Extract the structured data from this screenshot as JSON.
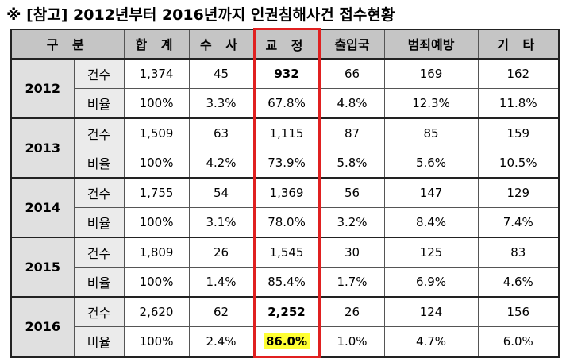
{
  "title": "※ [참고] 2012년부터 2016년까지 인권침해사건 접수현황",
  "headers": [
    "구 분",
    "합 계",
    "수 사",
    "교 정",
    "출입국",
    "범죄예방",
    "기 타"
  ],
  "rows": [
    {
      "year": "2012",
      "count": {
        "label": "건수",
        "values": [
          "1,374",
          "45",
          "932",
          "66",
          "169",
          "162"
        ]
      },
      "rate": {
        "label": "비율",
        "values": [
          "100%",
          "3.3%",
          "67.8%",
          "4.8%",
          "12.3%",
          "11.8%"
        ]
      }
    },
    {
      "year": "2013",
      "count": {
        "label": "건수",
        "values": [
          "1,509",
          "63",
          "1,115",
          "87",
          "85",
          "159"
        ]
      },
      "rate": {
        "label": "비율",
        "values": [
          "100%",
          "4.2%",
          "73.9%",
          "5.8%",
          "5.6%",
          "10.5%"
        ]
      }
    },
    {
      "year": "2014",
      "count": {
        "label": "건수",
        "values": [
          "1,755",
          "54",
          "1,369",
          "56",
          "147",
          "129"
        ]
      },
      "rate": {
        "label": "비율",
        "values": [
          "100%",
          "3.1%",
          "78.0%",
          "3.2%",
          "8.4%",
          "7.4%"
        ]
      }
    },
    {
      "year": "2015",
      "count": {
        "label": "건수",
        "values": [
          "1,809",
          "26",
          "1,545",
          "30",
          "125",
          "83"
        ]
      },
      "rate": {
        "label": "비율",
        "values": [
          "100%",
          "1.4%",
          "85.4%",
          "1.7%",
          "6.9%",
          "4.6%"
        ]
      }
    },
    {
      "year": "2016",
      "count": {
        "label": "건수",
        "values": [
          "2,620",
          "62",
          "2,252",
          "26",
          "124",
          "156"
        ]
      },
      "rate": {
        "label": "비율",
        "values": [
          "100%",
          "2.4%",
          "86.0%",
          "1.0%",
          "4.7%",
          "6.0%"
        ]
      }
    }
  ],
  "highlight_column": "교 정",
  "colors": {
    "header_bg": "#c5c5c5",
    "highlight_border": "#e02020",
    "highlight_fill": "#ffff33"
  }
}
